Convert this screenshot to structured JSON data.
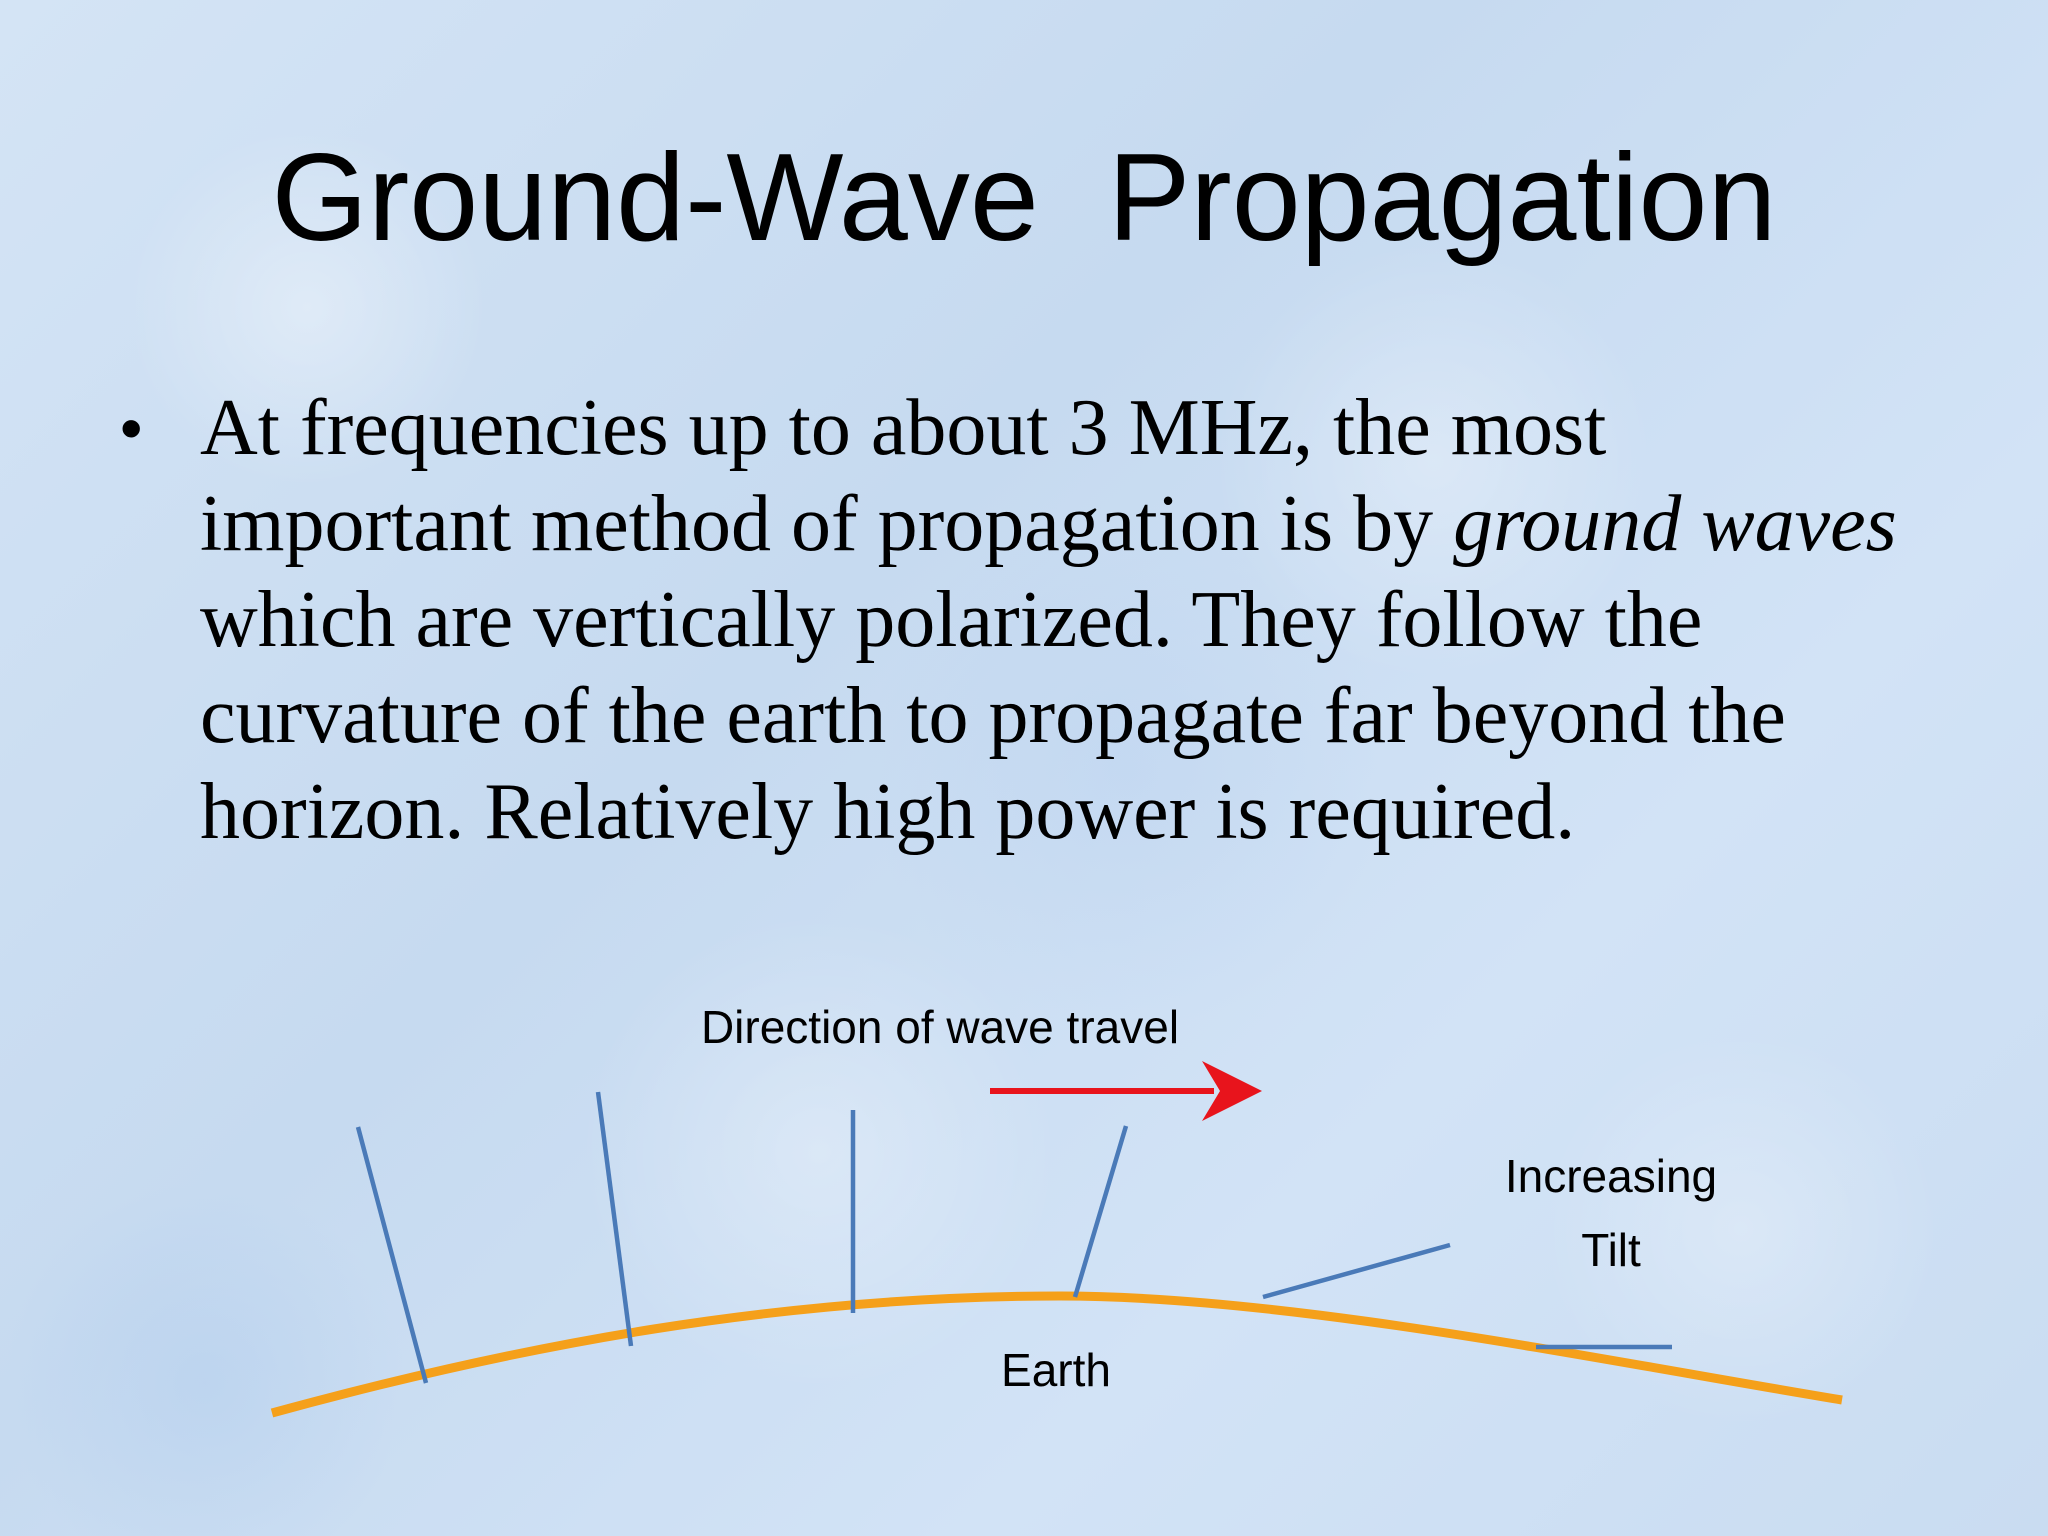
{
  "slide": {
    "title": "Ground-Wave  Propagation",
    "bullet": {
      "text_before": "At frequencies up to about 3 MHz, the most important method of propagation is by ",
      "emphasis": "ground waves",
      "text_after": " which are vertically polarized.  They follow the curvature of the earth to propagate far beyond the horizon.  Relatively high power is required."
    }
  },
  "diagram": {
    "labels": {
      "direction": "Direction of wave travel",
      "increasing": "Increasing",
      "tilt": "Tilt",
      "earth": "Earth"
    },
    "colors": {
      "earth_curve": "#f5a01a",
      "wave_lines": "#4a7ab8",
      "arrow": "#e8141c"
    }
  }
}
